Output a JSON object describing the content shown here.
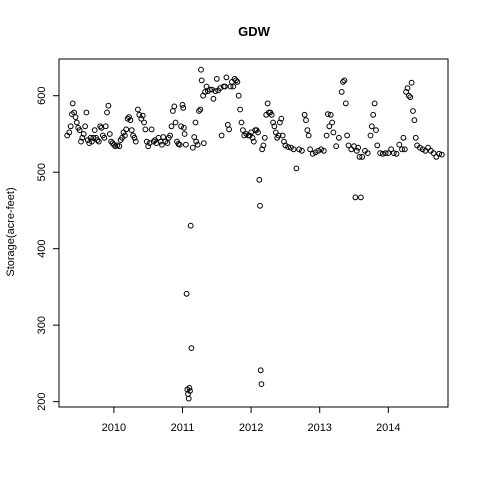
{
  "chart_data": {
    "type": "scatter",
    "title": "GDW",
    "xlabel": "",
    "ylabel": "Storage(acre-feet)",
    "xlim": [
      2009.2,
      2014.87
    ],
    "ylim": [
      193,
      648
    ],
    "x_ticks": [
      2010,
      2011,
      2012,
      2013,
      2014
    ],
    "y_ticks": [
      200,
      300,
      400,
      500,
      600
    ],
    "grid": false,
    "legend": "none",
    "marker": "open-circle",
    "series": [
      {
        "points": [
          [
            2009.32,
            548
          ],
          [
            2009.35,
            552
          ],
          [
            2009.37,
            560
          ],
          [
            2009.39,
            576
          ],
          [
            2009.4,
            590
          ],
          [
            2009.42,
            578
          ],
          [
            2009.44,
            572
          ],
          [
            2009.46,
            565
          ],
          [
            2009.48,
            558
          ],
          [
            2009.5,
            555
          ],
          [
            2009.52,
            540
          ],
          [
            2009.54,
            545
          ],
          [
            2009.56,
            550
          ],
          [
            2009.58,
            560
          ],
          [
            2009.6,
            578
          ],
          [
            2009.62,
            542
          ],
          [
            2009.64,
            538
          ],
          [
            2009.66,
            545
          ],
          [
            2009.68,
            540
          ],
          [
            2009.7,
            545
          ],
          [
            2009.72,
            555
          ],
          [
            2009.74,
            545
          ],
          [
            2009.76,
            542
          ],
          [
            2009.78,
            540
          ],
          [
            2009.8,
            560
          ],
          [
            2009.82,
            558
          ],
          [
            2009.84,
            548
          ],
          [
            2009.86,
            545
          ],
          [
            2009.88,
            560
          ],
          [
            2009.9,
            578
          ],
          [
            2009.92,
            587
          ],
          [
            2009.94,
            550
          ],
          [
            2009.96,
            540
          ],
          [
            2009.98,
            538
          ],
          [
            2010.0,
            536
          ],
          [
            2010.02,
            534
          ],
          [
            2010.05,
            535
          ],
          [
            2010.08,
            534
          ],
          [
            2010.1,
            542
          ],
          [
            2010.12,
            545
          ],
          [
            2010.14,
            552
          ],
          [
            2010.16,
            548
          ],
          [
            2010.18,
            556
          ],
          [
            2010.2,
            570
          ],
          [
            2010.22,
            572
          ],
          [
            2010.24,
            568
          ],
          [
            2010.26,
            555
          ],
          [
            2010.28,
            548
          ],
          [
            2010.3,
            545
          ],
          [
            2010.32,
            540
          ],
          [
            2010.35,
            582
          ],
          [
            2010.37,
            575
          ],
          [
            2010.4,
            570
          ],
          [
            2010.42,
            574
          ],
          [
            2010.44,
            565
          ],
          [
            2010.46,
            556
          ],
          [
            2010.48,
            540
          ],
          [
            2010.5,
            534
          ],
          [
            2010.52,
            538
          ],
          [
            2010.55,
            556
          ],
          [
            2010.58,
            540
          ],
          [
            2010.6,
            542
          ],
          [
            2010.62,
            538
          ],
          [
            2010.65,
            545
          ],
          [
            2010.68,
            540
          ],
          [
            2010.7,
            536
          ],
          [
            2010.72,
            546
          ],
          [
            2010.75,
            540
          ],
          [
            2010.78,
            538
          ],
          [
            2010.8,
            545
          ],
          [
            2010.82,
            548
          ],
          [
            2010.84,
            560
          ],
          [
            2010.86,
            580
          ],
          [
            2010.88,
            586
          ],
          [
            2010.9,
            565
          ],
          [
            2010.92,
            540
          ],
          [
            2010.94,
            537
          ],
          [
            2010.96,
            536
          ],
          [
            2010.98,
            560
          ],
          [
            2011.0,
            588
          ],
          [
            2011.01,
            584
          ],
          [
            2011.02,
            558
          ],
          [
            2011.03,
            550
          ],
          [
            2011.05,
            536
          ],
          [
            2011.06,
            341
          ],
          [
            2011.07,
            216
          ],
          [
            2011.08,
            210
          ],
          [
            2011.09,
            204
          ],
          [
            2011.1,
            218
          ],
          [
            2011.11,
            214
          ],
          [
            2011.12,
            430
          ],
          [
            2011.13,
            270
          ],
          [
            2011.15,
            532
          ],
          [
            2011.17,
            546
          ],
          [
            2011.19,
            565
          ],
          [
            2011.2,
            540
          ],
          [
            2011.22,
            536
          ],
          [
            2011.24,
            580
          ],
          [
            2011.26,
            582
          ],
          [
            2011.27,
            634
          ],
          [
            2011.28,
            620
          ],
          [
            2011.3,
            600
          ],
          [
            2011.31,
            538
          ],
          [
            2011.33,
            605
          ],
          [
            2011.35,
            612
          ],
          [
            2011.37,
            606
          ],
          [
            2011.4,
            608
          ],
          [
            2011.43,
            608
          ],
          [
            2011.45,
            596
          ],
          [
            2011.48,
            606
          ],
          [
            2011.5,
            622
          ],
          [
            2011.52,
            607
          ],
          [
            2011.55,
            610
          ],
          [
            2011.57,
            548
          ],
          [
            2011.6,
            612
          ],
          [
            2011.62,
            612
          ],
          [
            2011.64,
            624
          ],
          [
            2011.66,
            562
          ],
          [
            2011.68,
            556
          ],
          [
            2011.7,
            612
          ],
          [
            2011.72,
            618
          ],
          [
            2011.74,
            612
          ],
          [
            2011.76,
            622
          ],
          [
            2011.78,
            620
          ],
          [
            2011.8,
            618
          ],
          [
            2011.82,
            600
          ],
          [
            2011.84,
            582
          ],
          [
            2011.86,
            565
          ],
          [
            2011.88,
            555
          ],
          [
            2011.9,
            548
          ],
          [
            2011.93,
            550
          ],
          [
            2011.96,
            548
          ],
          [
            2011.98,
            548
          ],
          [
            2012.0,
            552
          ],
          [
            2012.02,
            545
          ],
          [
            2012.04,
            540
          ],
          [
            2012.06,
            555
          ],
          [
            2012.08,
            555
          ],
          [
            2012.1,
            552
          ],
          [
            2012.12,
            490
          ],
          [
            2012.13,
            456
          ],
          [
            2012.14,
            241
          ],
          [
            2012.15,
            223
          ],
          [
            2012.16,
            530
          ],
          [
            2012.18,
            535
          ],
          [
            2012.2,
            545
          ],
          [
            2012.22,
            575
          ],
          [
            2012.24,
            590
          ],
          [
            2012.26,
            578
          ],
          [
            2012.28,
            578
          ],
          [
            2012.3,
            575
          ],
          [
            2012.32,
            565
          ],
          [
            2012.34,
            560
          ],
          [
            2012.36,
            552
          ],
          [
            2012.38,
            545
          ],
          [
            2012.4,
            548
          ],
          [
            2012.42,
            565
          ],
          [
            2012.44,
            570
          ],
          [
            2012.46,
            548
          ],
          [
            2012.48,
            540
          ],
          [
            2012.5,
            535
          ],
          [
            2012.54,
            533
          ],
          [
            2012.58,
            532
          ],
          [
            2012.62,
            530
          ],
          [
            2012.66,
            505
          ],
          [
            2012.7,
            530
          ],
          [
            2012.74,
            528
          ],
          [
            2012.78,
            575
          ],
          [
            2012.8,
            568
          ],
          [
            2012.82,
            555
          ],
          [
            2012.84,
            548
          ],
          [
            2012.86,
            530
          ],
          [
            2012.9,
            524
          ],
          [
            2012.94,
            526
          ],
          [
            2012.98,
            528
          ],
          [
            2013.02,
            530
          ],
          [
            2013.06,
            528
          ],
          [
            2013.1,
            548
          ],
          [
            2013.12,
            576
          ],
          [
            2013.14,
            560
          ],
          [
            2013.16,
            575
          ],
          [
            2013.18,
            565
          ],
          [
            2013.2,
            552
          ],
          [
            2013.24,
            534
          ],
          [
            2013.28,
            545
          ],
          [
            2013.32,
            605
          ],
          [
            2013.34,
            618
          ],
          [
            2013.36,
            620
          ],
          [
            2013.38,
            590
          ],
          [
            2013.4,
            548
          ],
          [
            2013.42,
            535
          ],
          [
            2013.46,
            530
          ],
          [
            2013.5,
            534
          ],
          [
            2013.52,
            467
          ],
          [
            2013.54,
            528
          ],
          [
            2013.56,
            532
          ],
          [
            2013.58,
            520
          ],
          [
            2013.6,
            467
          ],
          [
            2013.62,
            520
          ],
          [
            2013.66,
            528
          ],
          [
            2013.7,
            525
          ],
          [
            2013.74,
            548
          ],
          [
            2013.76,
            560
          ],
          [
            2013.78,
            575
          ],
          [
            2013.8,
            590
          ],
          [
            2013.82,
            555
          ],
          [
            2013.84,
            535
          ],
          [
            2013.88,
            525
          ],
          [
            2013.92,
            524
          ],
          [
            2013.96,
            525
          ],
          [
            2014.0,
            525
          ],
          [
            2014.04,
            530
          ],
          [
            2014.08,
            525
          ],
          [
            2014.12,
            524
          ],
          [
            2014.16,
            536
          ],
          [
            2014.2,
            530
          ],
          [
            2014.22,
            545
          ],
          [
            2014.24,
            530
          ],
          [
            2014.26,
            605
          ],
          [
            2014.28,
            610
          ],
          [
            2014.3,
            600
          ],
          [
            2014.32,
            598
          ],
          [
            2014.34,
            617
          ],
          [
            2014.36,
            580
          ],
          [
            2014.38,
            568
          ],
          [
            2014.4,
            545
          ],
          [
            2014.42,
            535
          ],
          [
            2014.46,
            532
          ],
          [
            2014.5,
            530
          ],
          [
            2014.54,
            528
          ],
          [
            2014.58,
            532
          ],
          [
            2014.62,
            528
          ],
          [
            2014.66,
            525
          ],
          [
            2014.7,
            520
          ],
          [
            2014.74,
            524
          ],
          [
            2014.78,
            523
          ]
        ]
      }
    ]
  }
}
